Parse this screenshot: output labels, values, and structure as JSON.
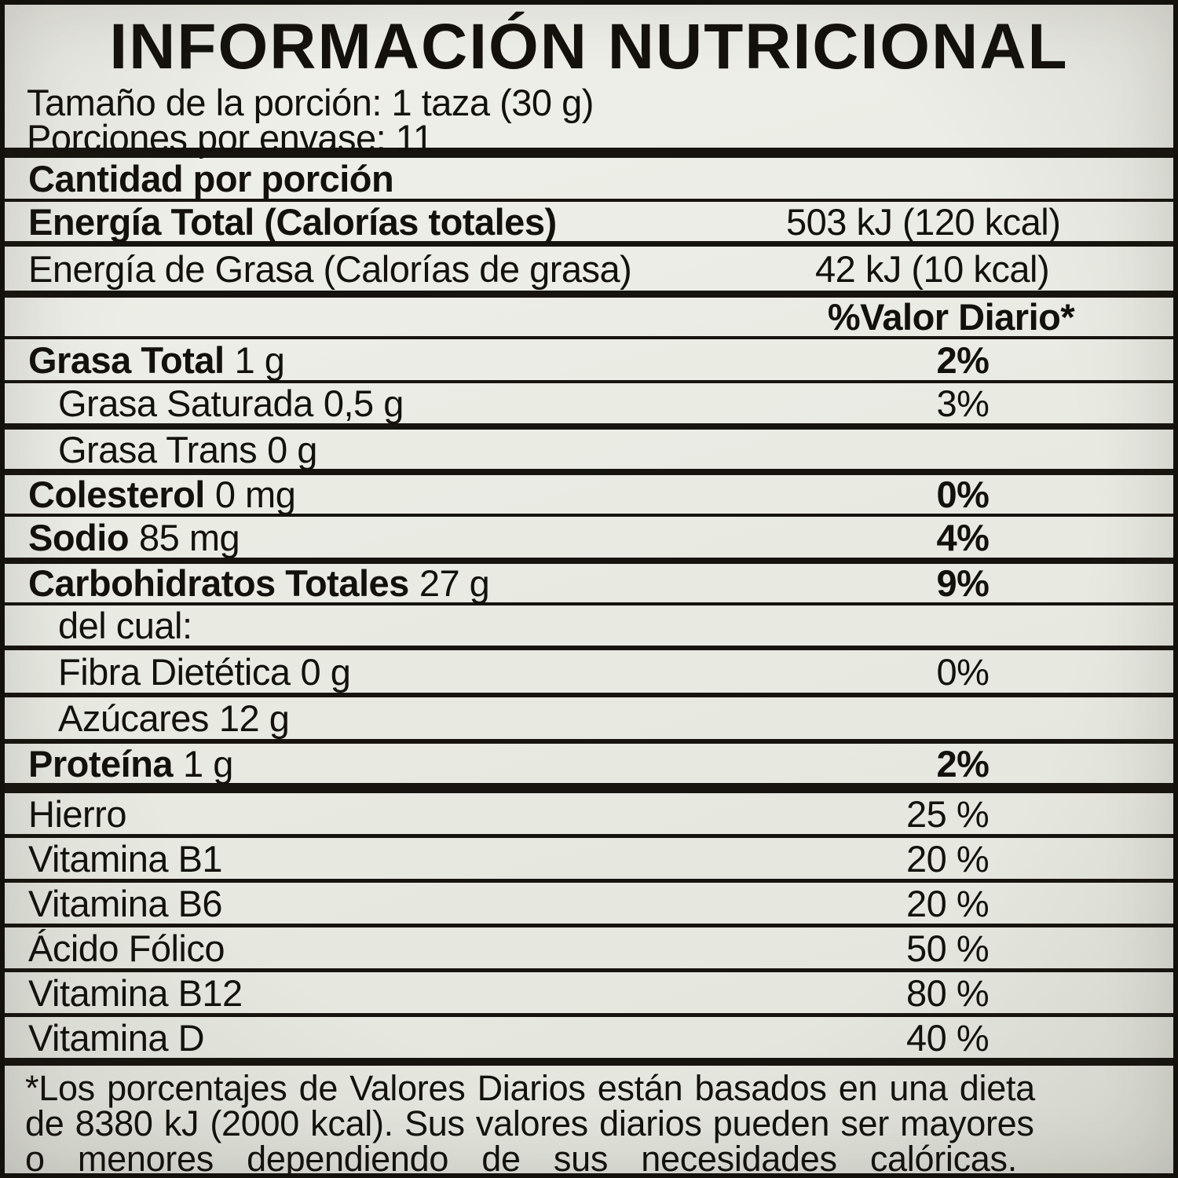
{
  "header": {
    "title": "INFORMACIÓN NUTRICIONAL",
    "serving_size": "Tamaño de la porción: 1 taza (30 g)",
    "servings_per_container": "Porciones por envase: 11"
  },
  "sections": {
    "amount_per_serving": "Cantidad por porción",
    "daily_value_header": "%Valor Diario*"
  },
  "energy": [
    {
      "label": "Energía Total (Calorías totales)",
      "value": "503 kJ (120 kcal)"
    },
    {
      "label": "Energía de Grasa (Calorías de grasa)",
      "value": "42 kJ (10 kcal)"
    }
  ],
  "nutrients": [
    {
      "name": "Grasa Total",
      "amount": "1 g",
      "dv": "2%"
    },
    {
      "name": "Grasa Saturada",
      "amount": "0,5 g",
      "dv": "3%"
    },
    {
      "name": "Grasa Trans",
      "amount": "0 g",
      "dv": ""
    },
    {
      "name": "Colesterol",
      "amount": "0 mg",
      "dv": "0%"
    },
    {
      "name": "Sodio",
      "amount": "85 mg",
      "dv": "4%"
    },
    {
      "name": "Carbohidratos Totales",
      "amount": "27 g",
      "dv": "9%"
    },
    {
      "name": "del cual:",
      "amount": "",
      "dv": ""
    },
    {
      "name": "Fibra Dietética",
      "amount": "0 g",
      "dv": "0%"
    },
    {
      "name": "Azúcares",
      "amount": "12 g",
      "dv": ""
    },
    {
      "name": "Proteína",
      "amount": "1 g",
      "dv": "2%"
    }
  ],
  "vitamins": [
    {
      "name": "Hierro",
      "dv": "25 %"
    },
    {
      "name": "Vitamina B1",
      "dv": "20 %"
    },
    {
      "name": "Vitamina B6",
      "dv": "20 %"
    },
    {
      "name": "Ácido Fólico",
      "dv": "50 %"
    },
    {
      "name": "Vitamina B12",
      "dv": "80 %"
    },
    {
      "name": "Vitamina D",
      "dv": "40 %"
    }
  ],
  "footnote_lines": [
    "*Los porcentajes de Valores Diarios están basados en una dieta",
    "de 8380 kJ (2000 kcal). Sus valores diarios pueden ser mayores",
    "o menores dependiendo de sus necesidades calóricas."
  ]
}
